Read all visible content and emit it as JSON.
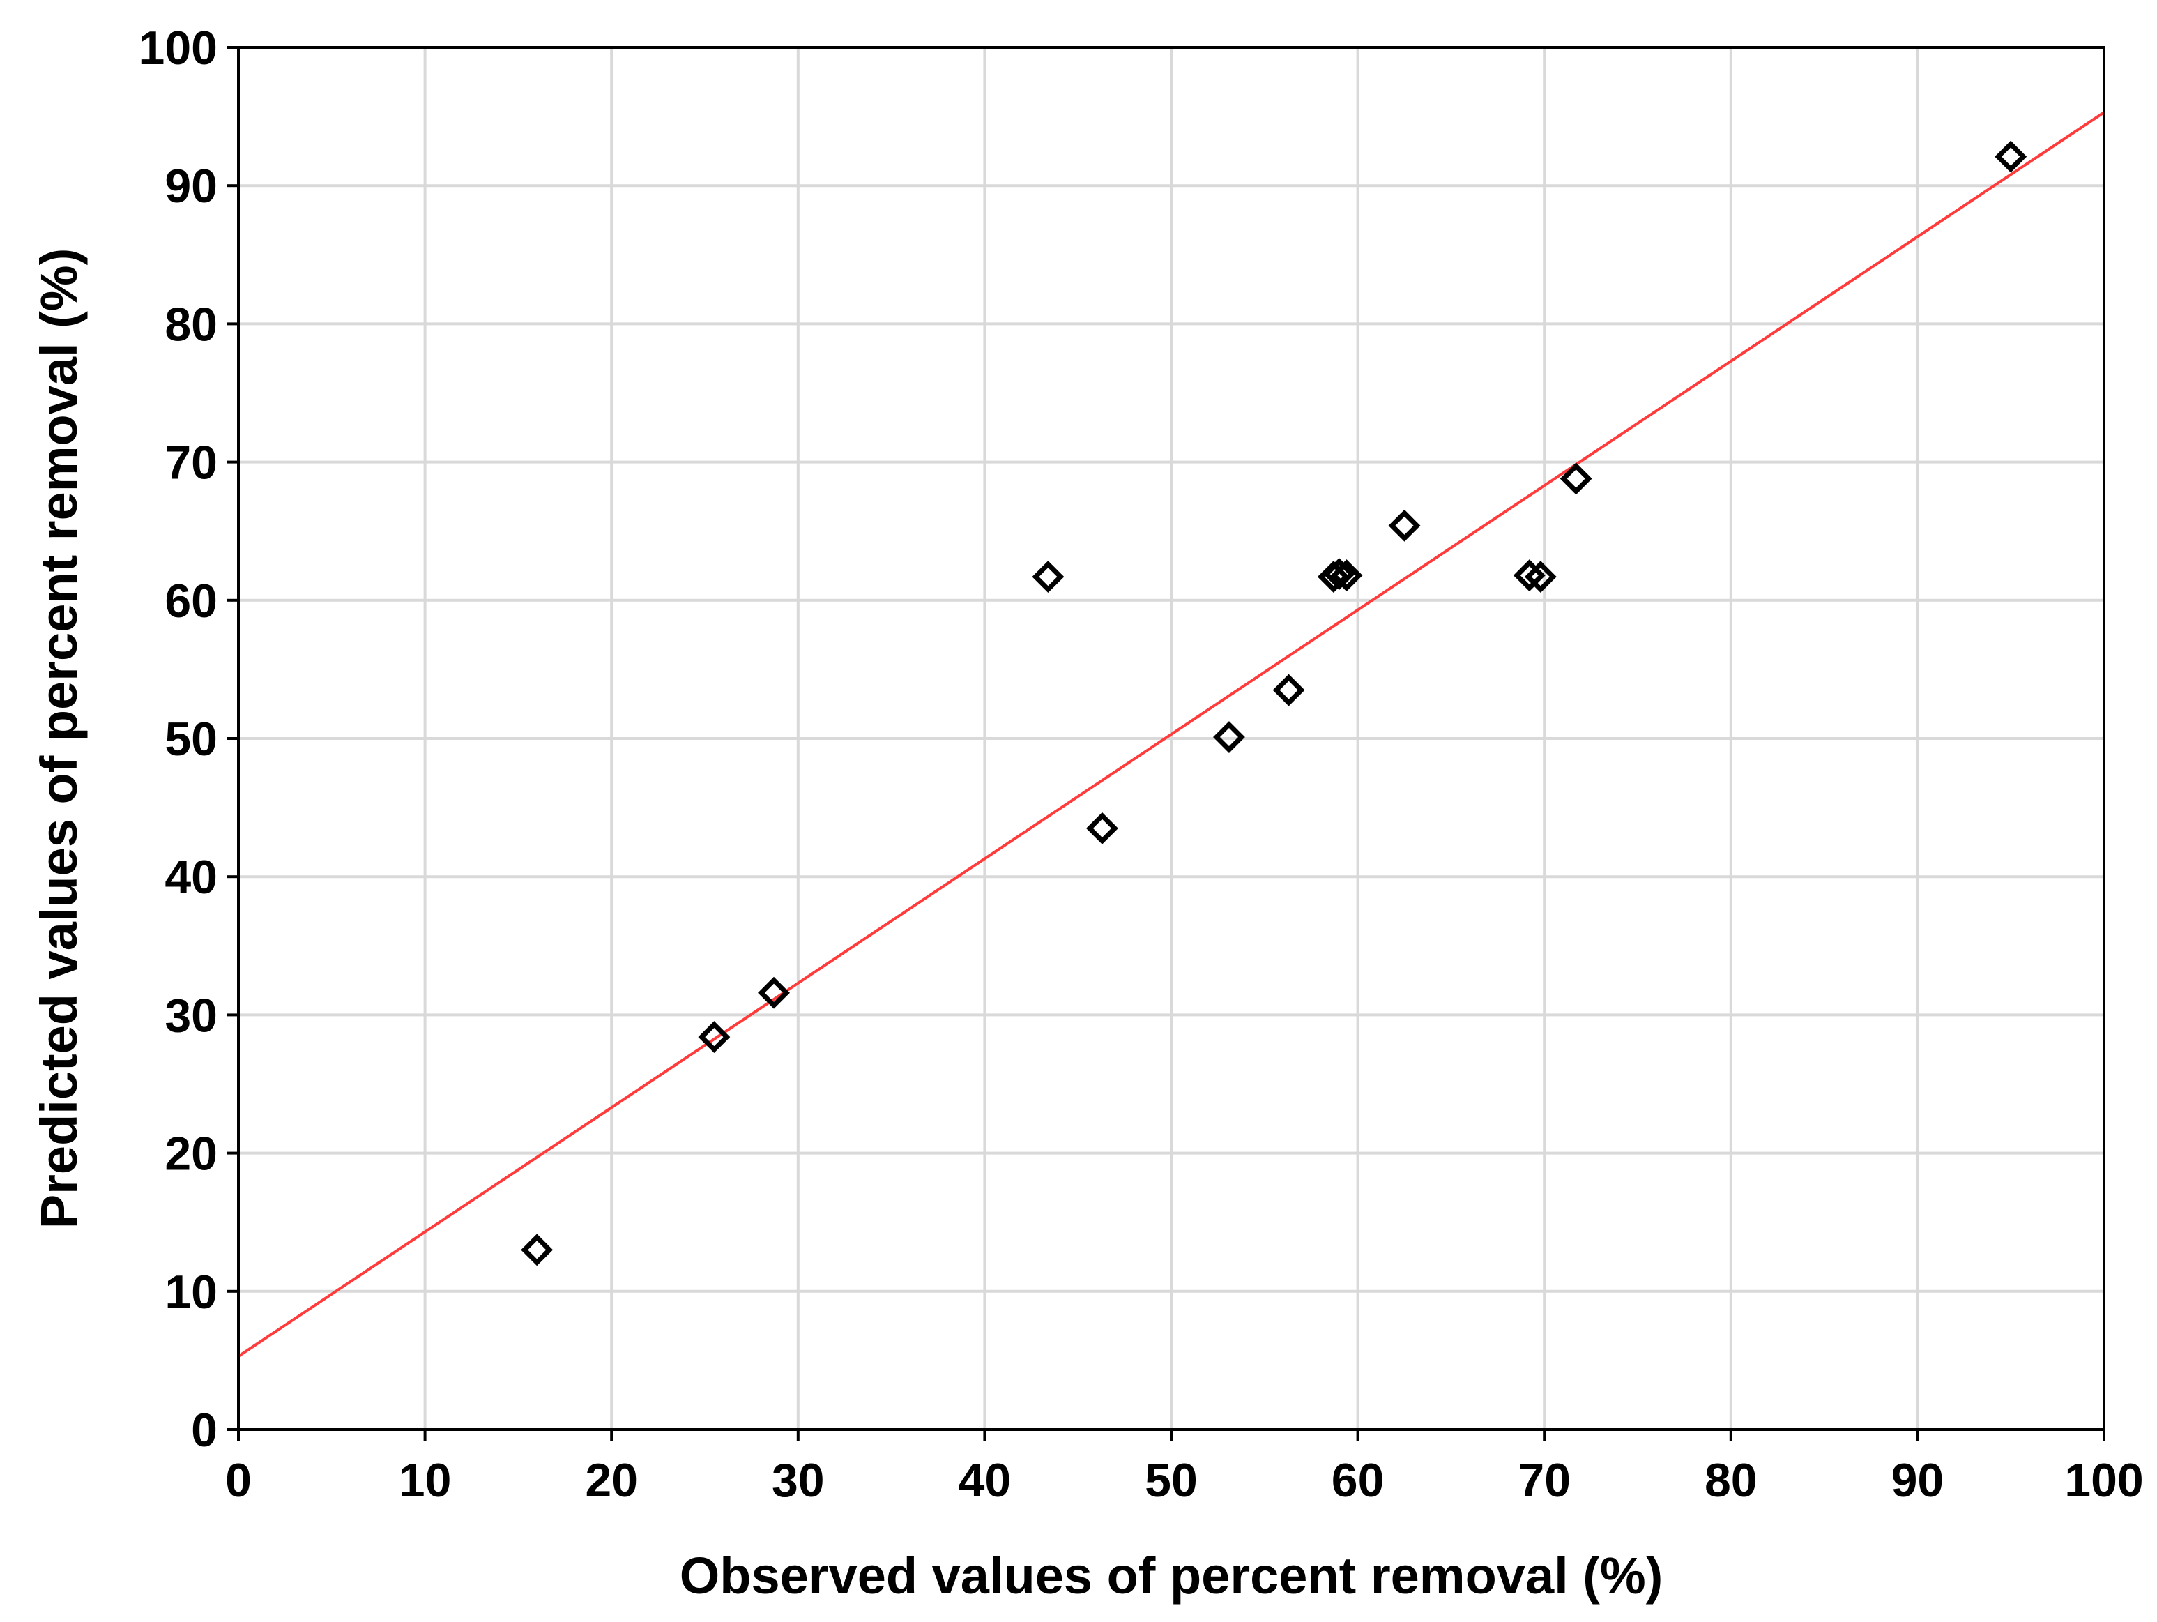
{
  "chart_data": {
    "type": "scatter",
    "xlabel": "Observed values of percent removal (%)",
    "ylabel": "Predicted values of percent removal (%)",
    "xlim": [
      0,
      100
    ],
    "ylim": [
      0,
      100
    ],
    "x_ticks": [
      0,
      10,
      20,
      30,
      40,
      50,
      60,
      70,
      80,
      90,
      100
    ],
    "y_ticks": [
      0,
      10,
      20,
      30,
      40,
      50,
      60,
      70,
      80,
      90,
      100
    ],
    "grid": true,
    "series": [
      {
        "marker": "diamond",
        "points": [
          {
            "x": 16.0,
            "y": 13.0
          },
          {
            "x": 25.5,
            "y": 28.4
          },
          {
            "x": 28.7,
            "y": 31.6
          },
          {
            "x": 43.4,
            "y": 61.7
          },
          {
            "x": 46.3,
            "y": 43.5
          },
          {
            "x": 53.1,
            "y": 50.1
          },
          {
            "x": 56.3,
            "y": 53.5
          },
          {
            "x": 58.7,
            "y": 61.7
          },
          {
            "x": 59.0,
            "y": 61.9
          },
          {
            "x": 59.4,
            "y": 61.8
          },
          {
            "x": 62.5,
            "y": 65.4
          },
          {
            "x": 69.2,
            "y": 61.8
          },
          {
            "x": 69.8,
            "y": 61.7
          },
          {
            "x": 71.7,
            "y": 68.8
          },
          {
            "x": 95.0,
            "y": 92.1
          }
        ]
      }
    ],
    "fit_line": {
      "x": [
        0,
        100
      ],
      "y": [
        5.3,
        95.3
      ],
      "color": "#ff3b3b"
    },
    "colors": {
      "points": "#000000",
      "fit": "#ff3b3b",
      "grid": "#d9d9d9"
    }
  }
}
